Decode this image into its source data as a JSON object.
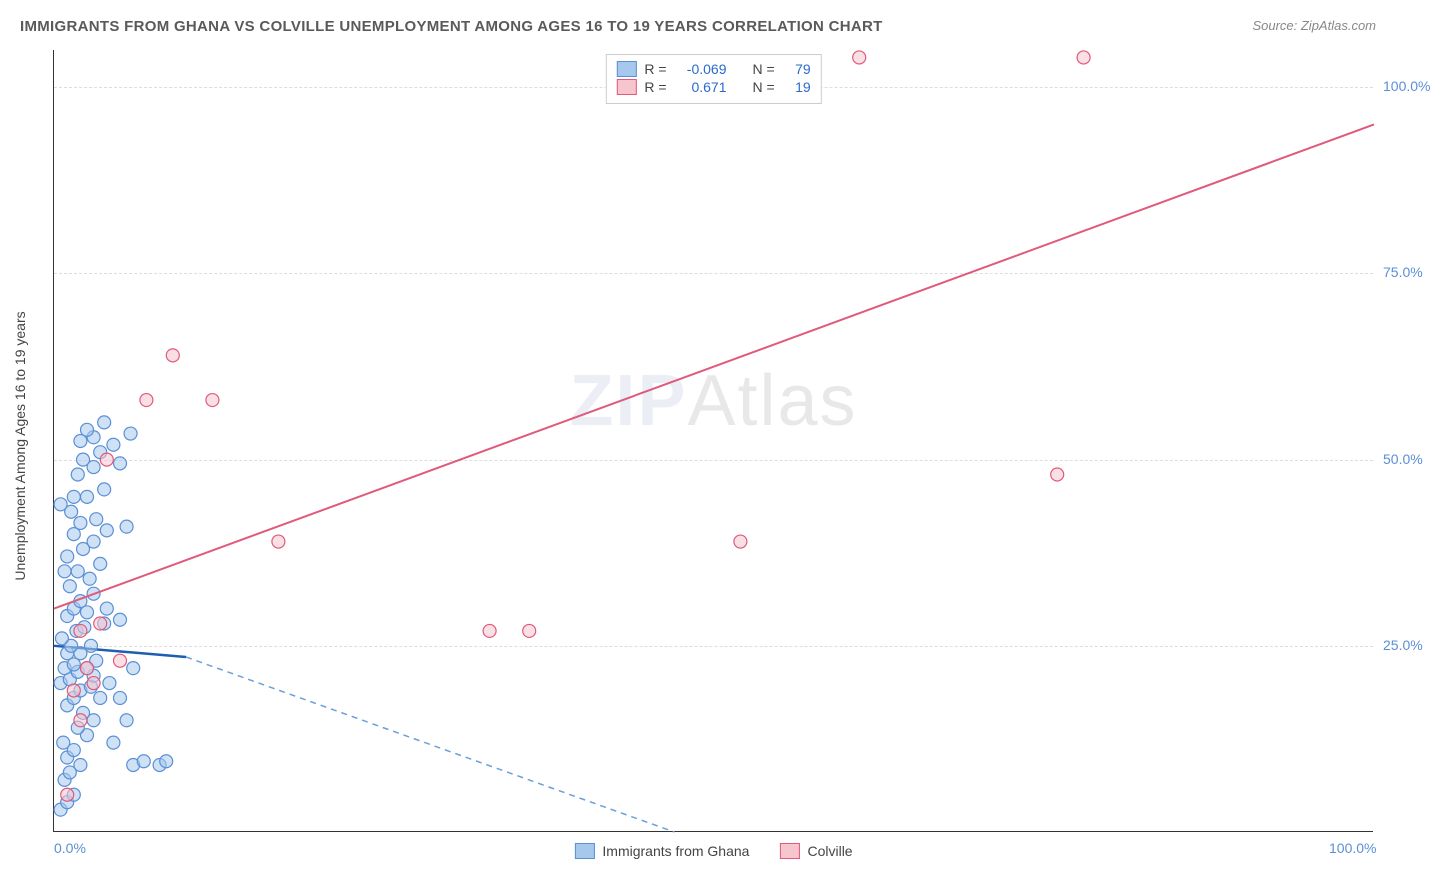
{
  "title": "IMMIGRANTS FROM GHANA VS COLVILLE UNEMPLOYMENT AMONG AGES 16 TO 19 YEARS CORRELATION CHART",
  "source": "Source: ZipAtlas.com",
  "ylabel": "Unemployment Among Ages 16 to 19 years",
  "watermark_a": "ZIP",
  "watermark_b": "Atlas",
  "chart": {
    "type": "scatter",
    "xlim": [
      0,
      100
    ],
    "ylim": [
      0,
      105
    ],
    "xtick_labels": [
      {
        "pos": 0,
        "text": "0.0%"
      },
      {
        "pos": 100,
        "text": "100.0%"
      }
    ],
    "ytick_labels": [
      {
        "pos": 25,
        "text": "25.0%"
      },
      {
        "pos": 50,
        "text": "50.0%"
      },
      {
        "pos": 75,
        "text": "75.0%"
      },
      {
        "pos": 100,
        "text": "100.0%"
      }
    ],
    "gridlines_y": [
      25,
      50,
      75,
      100
    ],
    "background_color": "#ffffff",
    "grid_color": "#dddddd"
  },
  "series": [
    {
      "name": "Immigrants from Ghana",
      "fill_color": "#a6c8ec",
      "stroke_color": "#5b8fd6",
      "fill_opacity": 0.55,
      "marker_radius": 6.5,
      "trend": {
        "x1": 0,
        "y1": 25,
        "x2": 10,
        "y2": 23.5,
        "color": "#1c5fb0",
        "width": 2.5,
        "dash": "none"
      },
      "trend_ext": {
        "x1": 10,
        "y1": 23.5,
        "x2": 47,
        "y2": 0,
        "color": "#6a9fd8",
        "width": 1.5,
        "dash": "6,5"
      },
      "r_value": "-0.069",
      "n_value": "79",
      "points": [
        [
          0.5,
          3
        ],
        [
          1,
          4
        ],
        [
          1.5,
          5
        ],
        [
          0.8,
          7
        ],
        [
          1.2,
          8
        ],
        [
          2,
          9
        ],
        [
          1,
          10
        ],
        [
          1.5,
          11
        ],
        [
          0.7,
          12
        ],
        [
          2.5,
          13
        ],
        [
          1.8,
          14
        ],
        [
          3,
          15
        ],
        [
          2.2,
          16
        ],
        [
          1,
          17
        ],
        [
          1.5,
          18
        ],
        [
          3.5,
          18
        ],
        [
          2,
          19
        ],
        [
          2.8,
          19.5
        ],
        [
          0.5,
          20
        ],
        [
          1.2,
          20.5
        ],
        [
          3,
          21
        ],
        [
          1.8,
          21.5
        ],
        [
          2.5,
          22
        ],
        [
          0.8,
          22
        ],
        [
          1.5,
          22.5
        ],
        [
          3.2,
          23
        ],
        [
          1,
          24
        ],
        [
          2,
          24
        ],
        [
          1.3,
          25
        ],
        [
          2.8,
          25
        ],
        [
          0.6,
          26
        ],
        [
          1.7,
          27
        ],
        [
          2.3,
          27.5
        ],
        [
          3.8,
          28
        ],
        [
          5,
          28.5
        ],
        [
          1,
          29
        ],
        [
          2.5,
          29.5
        ],
        [
          1.5,
          30
        ],
        [
          2,
          31
        ],
        [
          3,
          32
        ],
        [
          1.2,
          33
        ],
        [
          2.7,
          34
        ],
        [
          1.8,
          35
        ],
        [
          3.5,
          36
        ],
        [
          1,
          37
        ],
        [
          2.2,
          38
        ],
        [
          3,
          39
        ],
        [
          1.5,
          40
        ],
        [
          4,
          40.5
        ],
        [
          5.5,
          41
        ],
        [
          2,
          41.5
        ],
        [
          3.2,
          42
        ],
        [
          1.3,
          43
        ],
        [
          0.5,
          44
        ],
        [
          2.5,
          45
        ],
        [
          3.8,
          46
        ],
        [
          1.8,
          48
        ],
        [
          3,
          49
        ],
        [
          5,
          49.5
        ],
        [
          2.2,
          50
        ],
        [
          3.5,
          51
        ],
        [
          4.5,
          52
        ],
        [
          2,
          52.5
        ],
        [
          3,
          53
        ],
        [
          5.8,
          53.5
        ],
        [
          2.5,
          54
        ],
        [
          3.8,
          55
        ],
        [
          1.5,
          45
        ],
        [
          0.8,
          35
        ],
        [
          4.2,
          20
        ],
        [
          6,
          9
        ],
        [
          6.8,
          9.5
        ],
        [
          8,
          9
        ],
        [
          8.5,
          9.5
        ],
        [
          5.5,
          15
        ],
        [
          4.5,
          12
        ],
        [
          5,
          18
        ],
        [
          6,
          22
        ],
        [
          4,
          30
        ]
      ]
    },
    {
      "name": "Colville",
      "fill_color": "#f6c5ce",
      "stroke_color": "#e05a7a",
      "fill_opacity": 0.55,
      "marker_radius": 6.5,
      "trend": {
        "x1": 0,
        "y1": 30,
        "x2": 100,
        "y2": 95,
        "color": "#e05a7a",
        "width": 2,
        "dash": "none"
      },
      "r_value": "0.671",
      "n_value": "19",
      "points": [
        [
          1,
          5
        ],
        [
          2,
          15
        ],
        [
          1.5,
          19
        ],
        [
          3,
          20
        ],
        [
          2.5,
          22
        ],
        [
          5,
          23
        ],
        [
          2,
          27
        ],
        [
          3.5,
          28
        ],
        [
          4,
          50
        ],
        [
          7,
          58
        ],
        [
          12,
          58
        ],
        [
          9,
          64
        ],
        [
          17,
          39
        ],
        [
          33,
          27
        ],
        [
          36,
          27
        ],
        [
          52,
          39
        ],
        [
          61,
          104
        ],
        [
          76,
          48
        ],
        [
          78,
          104
        ]
      ]
    }
  ],
  "bottom_legend": [
    {
      "label": "Immigrants from Ghana",
      "fill": "#a6c8ec",
      "stroke": "#5b8fd6"
    },
    {
      "label": "Colville",
      "fill": "#f6c5ce",
      "stroke": "#e05a7a"
    }
  ],
  "stat_legend_labels": {
    "R": "R =",
    "N": "N ="
  }
}
